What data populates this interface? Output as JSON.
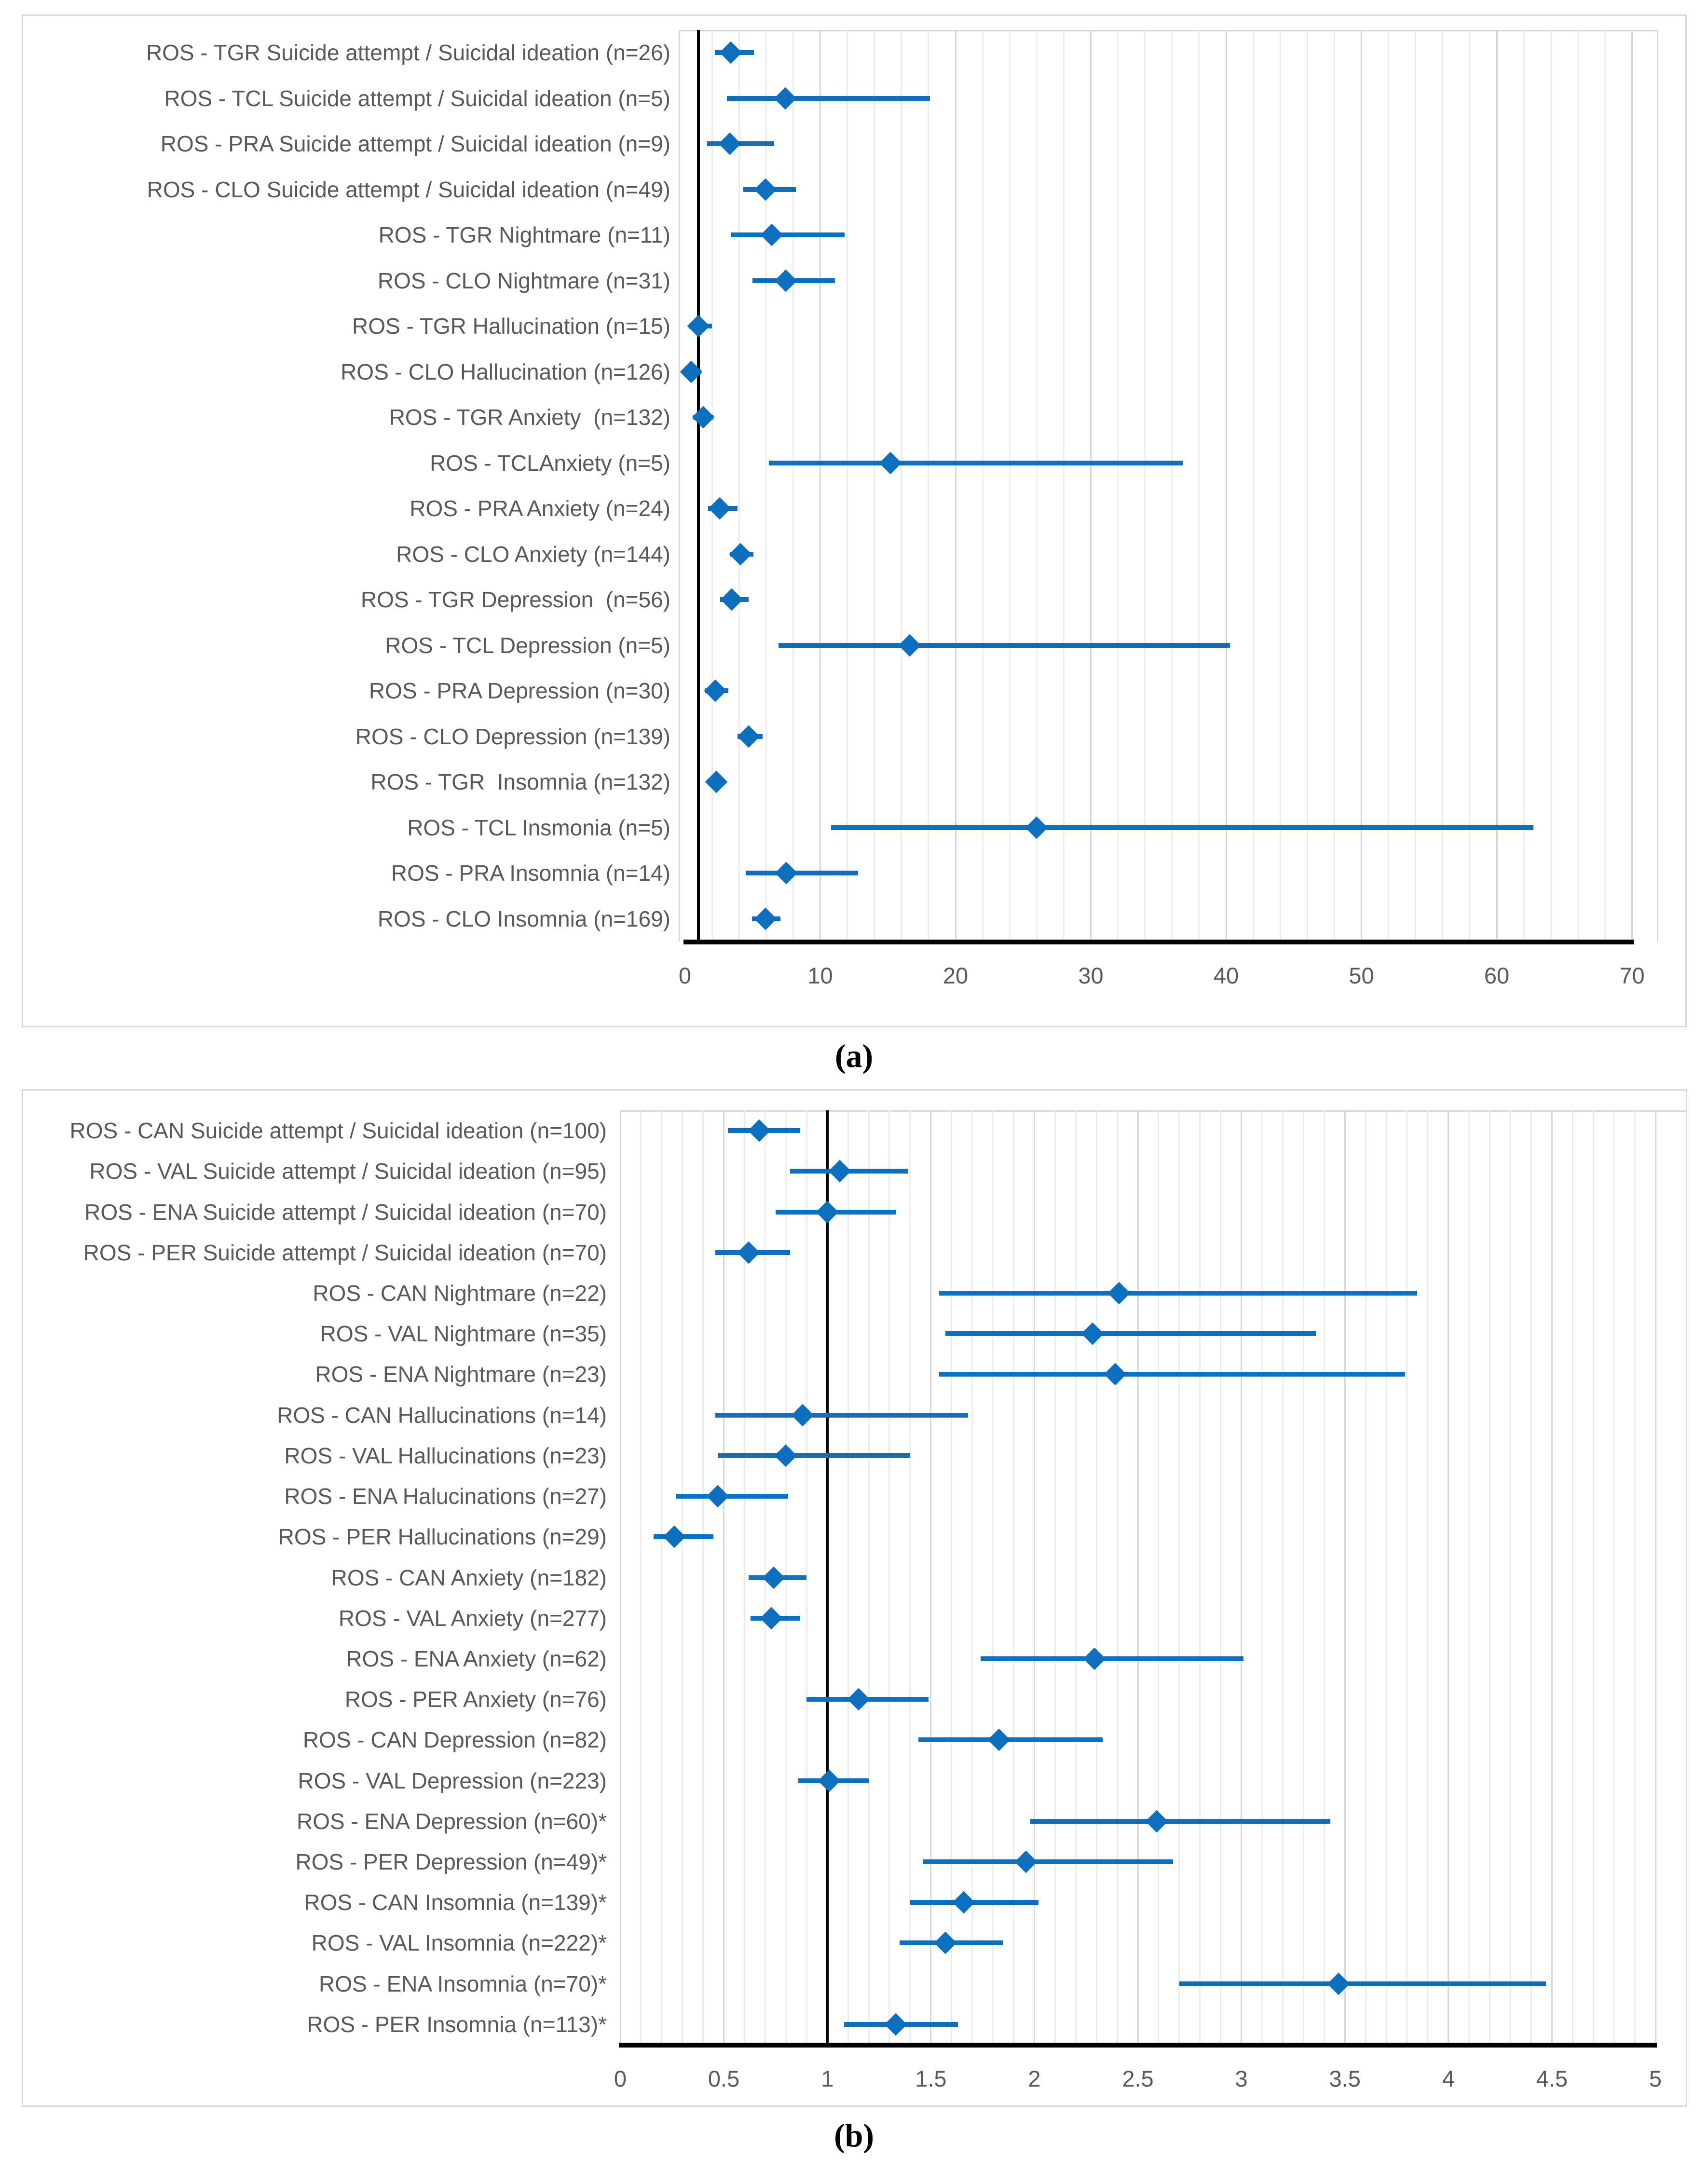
{
  "colors": {
    "marker_blue": "#0d6ebe",
    "label_gray": "#595959",
    "grid_minor": "#ececec",
    "grid_major": "#d7d7d7",
    "panel_border": "#d9d9d9",
    "axis_black": "#000000"
  },
  "chart_data": [
    {
      "type": "scatter",
      "variant": "forest-plot",
      "panel": "a",
      "caption": "(a)",
      "title": "",
      "xlabel": "",
      "xlim": [
        0,
        70
      ],
      "xticks": [
        0,
        10,
        20,
        30,
        40,
        50,
        60,
        70
      ],
      "minor_grid_step": 2,
      "major_grid_step": 10,
      "reference_line_x": 1,
      "grid": true,
      "legend": "none",
      "rows": [
        {
          "label": "ROS - TGR Suicide attempt / Suicidal ideation (n=26)",
          "or": 3.4,
          "ci_low": 2.2,
          "ci_high": 5.1
        },
        {
          "label": "ROS - TCL Suicide attempt / Suicidal ideation (n=5)",
          "or": 7.4,
          "ci_low": 3.1,
          "ci_high": 18.1
        },
        {
          "label": "ROS - PRA Suicide attempt / Suicidal ideation (n=9)",
          "or": 3.3,
          "ci_low": 1.65,
          "ci_high": 6.6
        },
        {
          "label": "ROS - CLO Suicide attempt / Suicidal ideation (n=49)",
          "or": 5.95,
          "ci_low": 4.3,
          "ci_high": 8.2
        },
        {
          "label": "ROS - TGR Nightmare (n=11)",
          "or": 6.4,
          "ci_low": 3.4,
          "ci_high": 11.8
        },
        {
          "label": "ROS - CLO Nightmare (n=31)",
          "or": 7.45,
          "ci_low": 5.0,
          "ci_high": 11.1
        },
        {
          "label": "ROS - TGR Hallucination (n=15)",
          "or": 1.0,
          "ci_low": 0.3,
          "ci_high": 2.0
        },
        {
          "label": "ROS - CLO Hallucination (n=126)",
          "or": 0.45,
          "ci_low": 0.15,
          "ci_high": 1.2
        },
        {
          "label": "ROS - TGR Anxiety  (n=132)",
          "or": 1.35,
          "ci_low": 0.6,
          "ci_high": 2.1
        },
        {
          "label": "ROS - TCLAnxiety (n=5)",
          "or": 15.2,
          "ci_low": 6.2,
          "ci_high": 36.8
        },
        {
          "label": "ROS - PRA Anxiety (n=24)",
          "or": 2.55,
          "ci_low": 1.7,
          "ci_high": 3.9
        },
        {
          "label": "ROS - CLO Anxiety (n=144)",
          "or": 4.1,
          "ci_low": 3.35,
          "ci_high": 5.05
        },
        {
          "label": "ROS - TGR Depression  (n=56)",
          "or": 3.45,
          "ci_low": 2.6,
          "ci_high": 4.7
        },
        {
          "label": "ROS - TCL Depression (n=5)",
          "or": 16.6,
          "ci_low": 6.9,
          "ci_high": 40.3
        },
        {
          "label": "ROS - PRA Depression (n=30)",
          "or": 2.25,
          "ci_low": 1.5,
          "ci_high": 3.2
        },
        {
          "label": "ROS - CLO Depression (n=139)",
          "or": 4.7,
          "ci_low": 3.9,
          "ci_high": 5.75
        },
        {
          "label": "ROS - TGR  Insomnia (n=132)",
          "or": 2.3,
          "ci_low": 1.6,
          "ci_high": 3.0
        },
        {
          "label": "ROS - TCL Insmonia (n=5)",
          "or": 26.0,
          "ci_low": 10.8,
          "ci_high": 62.7
        },
        {
          "label": "ROS - PRA Insomnia (n=14)",
          "or": 7.5,
          "ci_low": 4.5,
          "ci_high": 12.8
        },
        {
          "label": "ROS - CLO Insomnia (n=169)",
          "or": 5.95,
          "ci_low": 4.95,
          "ci_high": 7.05
        }
      ]
    },
    {
      "type": "scatter",
      "variant": "forest-plot",
      "panel": "b",
      "caption": "(b)",
      "title": "",
      "xlabel": "",
      "xlim": [
        0,
        5
      ],
      "xticks": [
        0,
        0.5,
        1,
        1.5,
        2,
        2.5,
        3,
        3.5,
        4,
        4.5,
        5
      ],
      "minor_grid_step": 0.1,
      "major_grid_step": 0.5,
      "reference_line_x": 1,
      "grid": true,
      "legend": "none",
      "rows": [
        {
          "label": "ROS - CAN Suicide attempt / Suicidal ideation (n=100)",
          "or": 0.67,
          "ci_low": 0.52,
          "ci_high": 0.87
        },
        {
          "label": "ROS - VAL Suicide attempt / Suicidal ideation (n=95)",
          "or": 1.06,
          "ci_low": 0.82,
          "ci_high": 1.39
        },
        {
          "label": "ROS - ENA Suicide attempt / Suicidal ideation (n=70)",
          "or": 1.0,
          "ci_low": 0.75,
          "ci_high": 1.33
        },
        {
          "label": "ROS - PER Suicide attempt / Suicidal ideation (n=70)",
          "or": 0.62,
          "ci_low": 0.46,
          "ci_high": 0.82
        },
        {
          "label": "ROS - CAN Nightmare (n=22)",
          "or": 2.41,
          "ci_low": 1.54,
          "ci_high": 3.85
        },
        {
          "label": "ROS - VAL Nightmare (n=35)",
          "or": 2.28,
          "ci_low": 1.57,
          "ci_high": 3.36
        },
        {
          "label": "ROS - ENA Nightmare (n=23)",
          "or": 2.39,
          "ci_low": 1.54,
          "ci_high": 3.79
        },
        {
          "label": "ROS - CAN Hallucinations (n=14)",
          "or": 0.88,
          "ci_low": 0.46,
          "ci_high": 1.68
        },
        {
          "label": "ROS - VAL Hallucinations (n=23)",
          "or": 0.8,
          "ci_low": 0.47,
          "ci_high": 1.4
        },
        {
          "label": "ROS - ENA Halucinations (n=27)",
          "or": 0.47,
          "ci_low": 0.27,
          "ci_high": 0.81
        },
        {
          "label": "ROS - PER Hallucinations (n=29)",
          "or": 0.26,
          "ci_low": 0.16,
          "ci_high": 0.45
        },
        {
          "label": "ROS - CAN Anxiety (n=182)",
          "or": 0.74,
          "ci_low": 0.62,
          "ci_high": 0.9
        },
        {
          "label": "ROS - VAL Anxiety (n=277)",
          "or": 0.73,
          "ci_low": 0.63,
          "ci_high": 0.87
        },
        {
          "label": "ROS - ENA Anxiety (n=62)",
          "or": 2.29,
          "ci_low": 1.74,
          "ci_high": 3.01
        },
        {
          "label": "ROS - PER Anxiety (n=76)",
          "or": 1.15,
          "ci_low": 0.9,
          "ci_high": 1.49
        },
        {
          "label": "ROS - CAN Depression (n=82)",
          "or": 1.83,
          "ci_low": 1.44,
          "ci_high": 2.33
        },
        {
          "label": "ROS - VAL Depression (n=223)",
          "or": 1.01,
          "ci_low": 0.86,
          "ci_high": 1.2
        },
        {
          "label": "ROS - ENA Depression (n=60)*",
          "or": 2.59,
          "ci_low": 1.98,
          "ci_high": 3.43
        },
        {
          "label": "ROS - PER Depression (n=49)*",
          "or": 1.96,
          "ci_low": 1.46,
          "ci_high": 2.67
        },
        {
          "label": "ROS - CAN Insomnia (n=139)*",
          "or": 1.66,
          "ci_low": 1.4,
          "ci_high": 2.02
        },
        {
          "label": "ROS - VAL Insomnia (n=222)*",
          "or": 1.57,
          "ci_low": 1.35,
          "ci_high": 1.85
        },
        {
          "label": "ROS - ENA Insomnia (n=70)*",
          "or": 3.47,
          "ci_low": 2.7,
          "ci_high": 4.47
        },
        {
          "label": "ROS - PER Insomnia (n=113)*",
          "or": 1.33,
          "ci_low": 1.08,
          "ci_high": 1.63
        }
      ]
    }
  ]
}
